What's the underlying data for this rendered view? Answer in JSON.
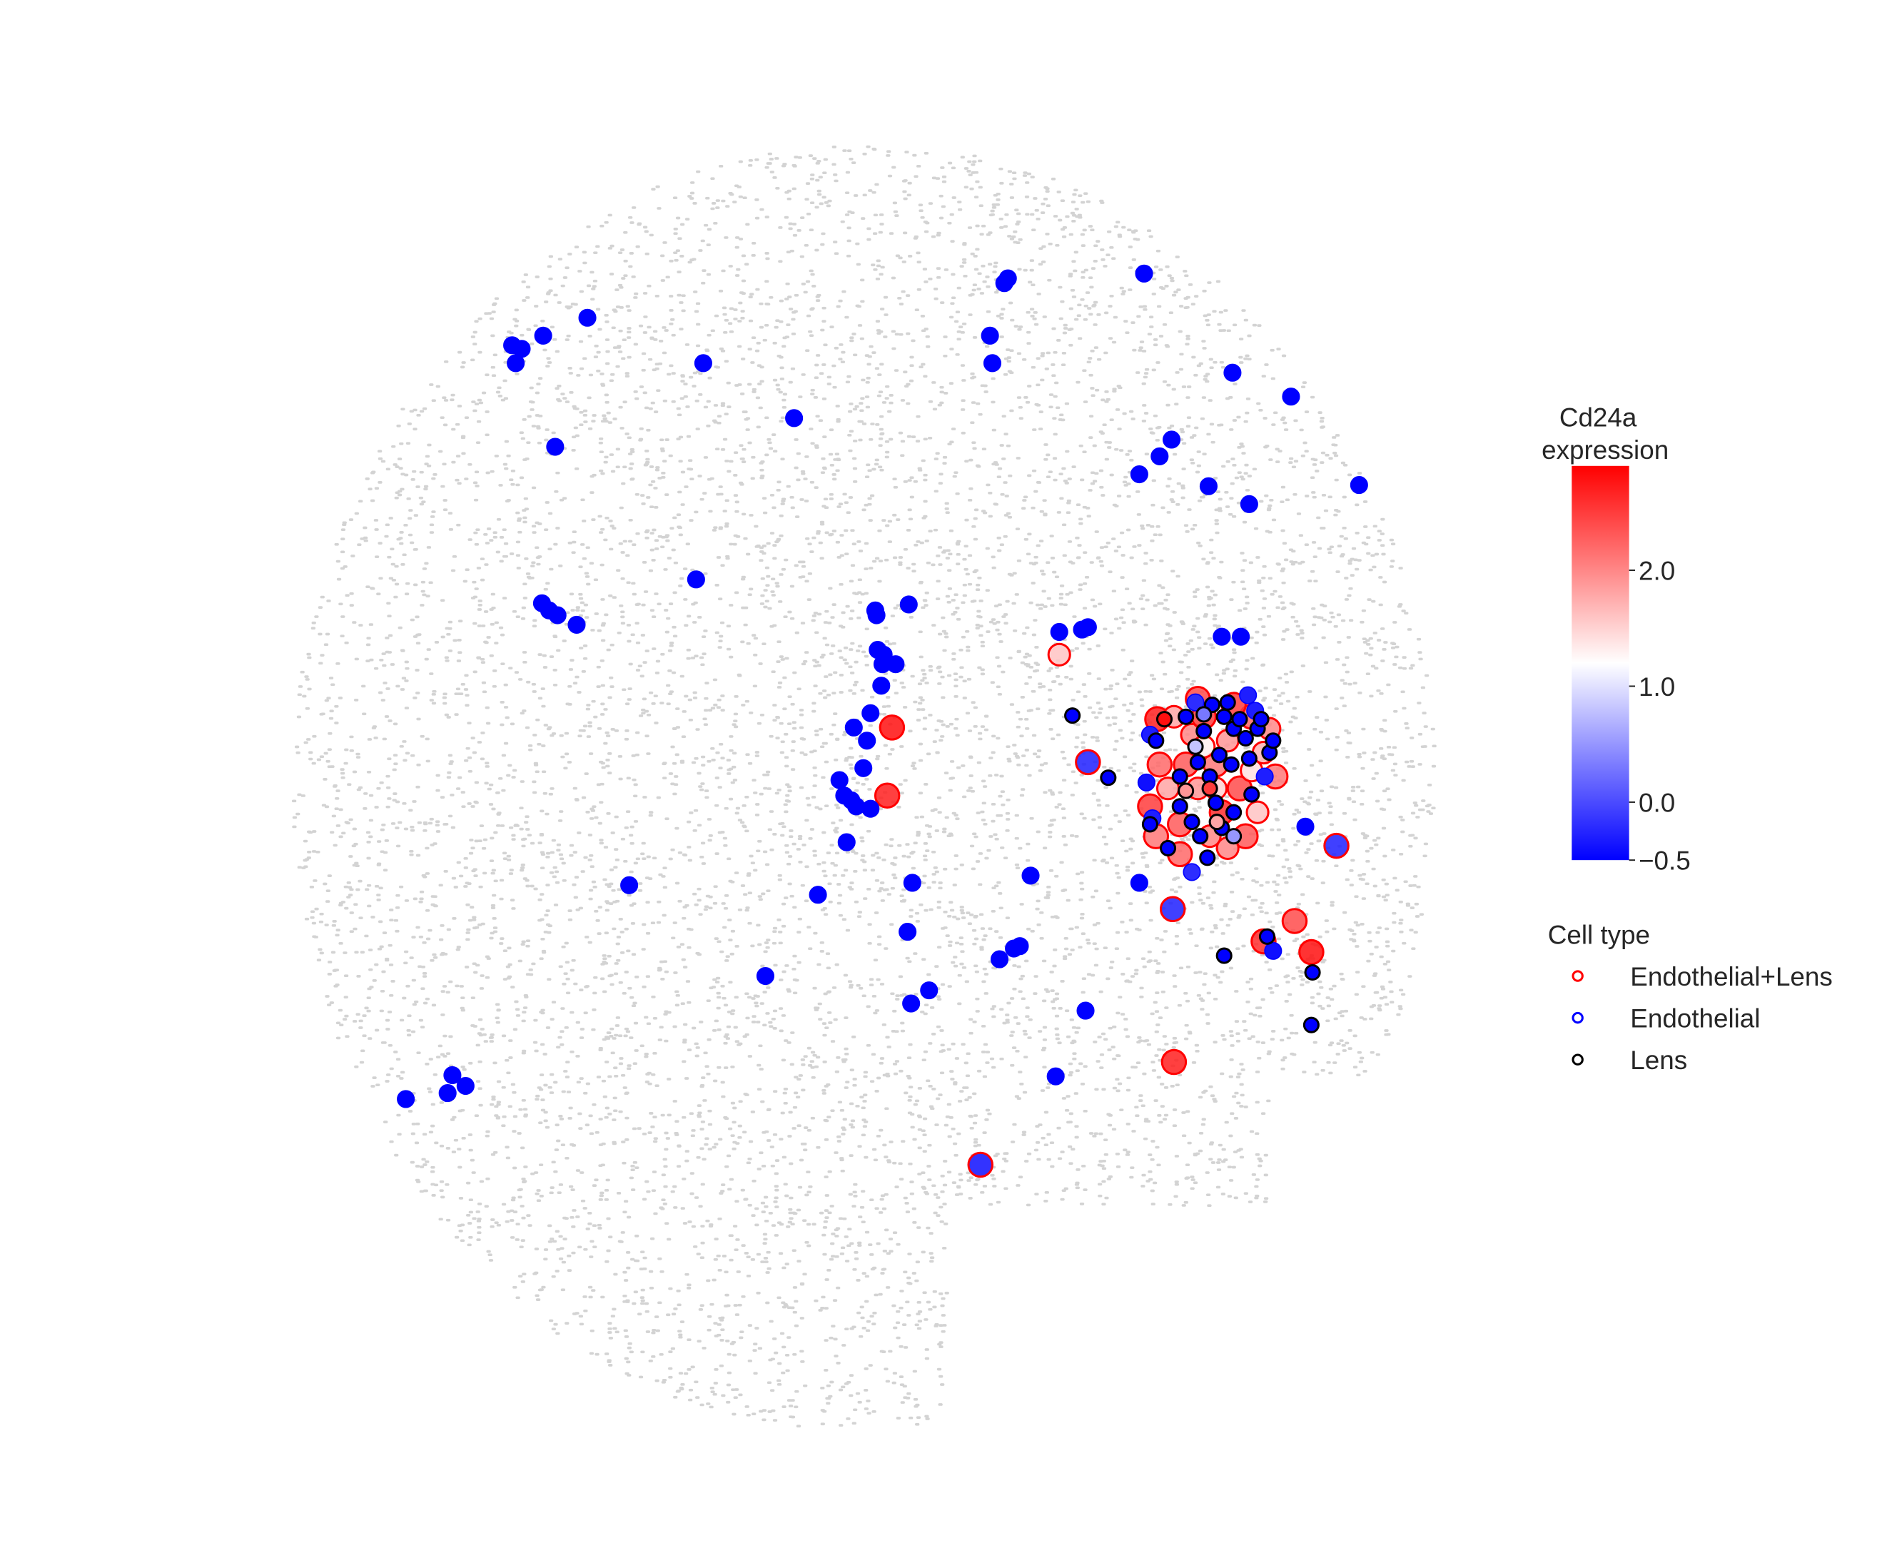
{
  "chart_data": {
    "type": "scatter",
    "title": "",
    "xlabel": "",
    "ylabel": "",
    "xlim": [
      0,
      1570
    ],
    "ylim": [
      0,
      1300
    ],
    "grid": false,
    "axes_visible": false,
    "background_cells": {
      "color": "#d3d3d3",
      "description_shape": "disc",
      "center": [
        720,
        660
      ],
      "radius": 520
    },
    "colorbar": {
      "title_line1": "Cd24a",
      "title_line2": "expression",
      "min": -0.5,
      "max": 2.9,
      "ticks": [
        {
          "value": 2.0,
          "label": "2.0"
        },
        {
          "value": 1.0,
          "label": "1.0"
        },
        {
          "value": 0.0,
          "label": "0.0"
        },
        {
          "value": -0.5,
          "label": "−0.5"
        }
      ],
      "cmap": [
        "#0000ff",
        "#ffffff",
        "#ff0000"
      ],
      "center_value": 1.2
    },
    "legend": {
      "title": "Cell type",
      "placement": "right",
      "entries": [
        {
          "label": "Endothelial+Lens",
          "edge_color": "#ff0000"
        },
        {
          "label": "Endothelial",
          "edge_color": "#0000ff"
        },
        {
          "label": "Lens",
          "edge_color": "#000000"
        }
      ]
    },
    "series": [
      {
        "name": "Endothelial+Lens",
        "edge_color": "#ff0000",
        "points": [
          [
            744,
            609,
            2.8
          ],
          [
            740,
            666,
            2.7
          ],
          [
            980,
            889,
            2.7
          ],
          [
            1081,
            771,
            2.4
          ],
          [
            1095,
            797,
            2.8
          ],
          [
            1055,
            788,
            2.6
          ],
          [
            1116,
            708,
            -0.3
          ],
          [
            884,
            548,
            1.6
          ],
          [
            818,
            975,
            -0.4
          ],
          [
            979,
            761,
            -0.3
          ],
          [
            908,
            638,
            -0.3
          ],
          [
            966,
            602,
            2.7
          ],
          [
            968,
            640,
            2.2
          ],
          [
            975,
            660,
            1.8
          ],
          [
            985,
            690,
            2.3
          ],
          [
            995,
            615,
            2.0
          ],
          [
            1005,
            600,
            2.5
          ],
          [
            1015,
            640,
            2.1
          ],
          [
            1025,
            620,
            1.9
          ],
          [
            1035,
            660,
            2.4
          ],
          [
            1045,
            600,
            2.2
          ],
          [
            1055,
            630,
            1.7
          ],
          [
            1020,
            680,
            2.6
          ],
          [
            1000,
            660,
            1.9
          ],
          [
            990,
            640,
            2.3
          ],
          [
            980,
            600,
            1.8
          ],
          [
            1010,
            700,
            2.0
          ],
          [
            1040,
            700,
            2.3
          ],
          [
            1030,
            590,
            2.5
          ],
          [
            1060,
            610,
            2.0
          ],
          [
            965,
            700,
            2.1
          ],
          [
            1050,
            680,
            1.6
          ],
          [
            1000,
            585,
            2.4
          ],
          [
            985,
            715,
            2.2
          ],
          [
            1025,
            710,
            2.0
          ],
          [
            960,
            675,
            2.5
          ],
          [
            1065,
            650,
            2.1
          ],
          [
            1015,
            660,
            1.5
          ],
          [
            1045,
            645,
            1.4
          ],
          [
            1005,
            625,
            1.3
          ]
        ]
      },
      {
        "name": "Endothelial",
        "edge_color": "#0000ff",
        "points": [
          [
            955,
            229,
            -0.5
          ],
          [
            841,
            233,
            -0.5
          ],
          [
            838,
            237,
            -0.5
          ],
          [
            489,
            266,
            -0.5
          ],
          [
            452,
            281,
            -0.5
          ],
          [
            426,
            289,
            -0.5
          ],
          [
            434,
            292,
            -0.5
          ],
          [
            429,
            304,
            -0.5
          ],
          [
            586,
            304,
            -0.5
          ],
          [
            826,
            281,
            -0.5
          ],
          [
            828,
            304,
            -0.5
          ],
          [
            1029,
            312,
            -0.5
          ],
          [
            1078,
            332,
            -0.5
          ],
          [
            662,
            350,
            -0.5
          ],
          [
            462,
            374,
            -0.5
          ],
          [
            978,
            368,
            -0.5
          ],
          [
            968,
            382,
            -0.5
          ],
          [
            951,
            397,
            -0.5
          ],
          [
            1135,
            406,
            -0.5
          ],
          [
            1009,
            407,
            -0.5
          ],
          [
            1043,
            422,
            -0.5
          ],
          [
            580,
            485,
            -0.5
          ],
          [
            451,
            505,
            -0.5
          ],
          [
            457,
            511,
            -0.5
          ],
          [
            464,
            515,
            -0.5
          ],
          [
            480,
            523,
            -0.5
          ],
          [
            730,
            511,
            -0.5
          ],
          [
            731,
            515,
            -0.5
          ],
          [
            758,
            506,
            -0.5
          ],
          [
            884,
            529,
            -0.5
          ],
          [
            903,
            527,
            -0.5
          ],
          [
            908,
            525,
            -0.5
          ],
          [
            1020,
            533,
            -0.5
          ],
          [
            1036,
            533,
            -0.5
          ],
          [
            732,
            544,
            -0.5
          ],
          [
            737,
            548,
            -0.5
          ],
          [
            736,
            556,
            -0.5
          ],
          [
            747,
            556,
            -0.5
          ],
          [
            735,
            574,
            -0.5
          ],
          [
            726,
            597,
            -0.5
          ],
          [
            712,
            609,
            -0.5
          ],
          [
            723,
            620,
            -0.5
          ],
          [
            720,
            643,
            -0.5
          ],
          [
            700,
            653,
            -0.5
          ],
          [
            704,
            666,
            -0.5
          ],
          [
            710,
            670,
            -0.5
          ],
          [
            714,
            675,
            -0.5
          ],
          [
            726,
            677,
            -0.5
          ],
          [
            706,
            705,
            -0.5
          ],
          [
            1090,
            692,
            -0.5
          ],
          [
            524,
            741,
            -0.5
          ],
          [
            761,
            739,
            -0.5
          ],
          [
            682,
            749,
            -0.5
          ],
          [
            860,
            733,
            -0.5
          ],
          [
            951,
            739,
            -0.5
          ],
          [
            757,
            780,
            -0.5
          ],
          [
            851,
            792,
            -0.5
          ],
          [
            846,
            794,
            -0.5
          ],
          [
            834,
            803,
            -0.5
          ],
          [
            638,
            817,
            -0.5
          ],
          [
            775,
            829,
            -0.5
          ],
          [
            760,
            840,
            -0.5
          ],
          [
            906,
            846,
            -0.5
          ],
          [
            881,
            901,
            -0.5
          ],
          [
            376,
            900,
            -0.5
          ],
          [
            387,
            909,
            -0.5
          ],
          [
            372,
            915,
            -0.5
          ],
          [
            337,
            920,
            -0.5
          ],
          [
            960,
            615,
            -0.3
          ],
          [
            998,
            588,
            -0.2
          ],
          [
            1048,
            595,
            -0.3
          ],
          [
            957,
            655,
            -0.4
          ],
          [
            962,
            685,
            -0.3
          ],
          [
            995,
            730,
            -0.2
          ],
          [
            1056,
            650,
            -0.3
          ],
          [
            1063,
            796,
            -0.4
          ],
          [
            1042,
            582,
            -0.3
          ]
        ]
      },
      {
        "name": "Lens",
        "edge_color": "#000000",
        "points": [
          [
            895,
            599,
            -0.5
          ],
          [
            925,
            651,
            -0.5
          ],
          [
            1022,
            800,
            -0.5
          ],
          [
            1058,
            784,
            -0.5
          ],
          [
            1096,
            814,
            -0.5
          ],
          [
            1095,
            858,
            -0.5
          ],
          [
            1012,
            590,
            -0.5
          ],
          [
            1022,
            600,
            -0.5
          ],
          [
            1030,
            610,
            -0.5
          ],
          [
            1005,
            612,
            -0.5
          ],
          [
            1040,
            618,
            -0.5
          ],
          [
            1018,
            632,
            -0.5
          ],
          [
            1000,
            638,
            -0.5
          ],
          [
            1028,
            640,
            -0.5
          ],
          [
            1043,
            635,
            -0.5
          ],
          [
            1010,
            650,
            -0.5
          ],
          [
            985,
            675,
            -0.5
          ],
          [
            995,
            688,
            -0.5
          ],
          [
            1020,
            693,
            -0.5
          ],
          [
            1030,
            680,
            -0.5
          ],
          [
            1008,
            718,
            -0.5
          ],
          [
            1050,
            610,
            -0.5
          ],
          [
            965,
            620,
            -0.5
          ],
          [
            990,
            600,
            -0.5
          ],
          [
            1060,
            630,
            -0.5
          ],
          [
            975,
            710,
            -0.5
          ],
          [
            1015,
            672,
            -0.5
          ],
          [
            1045,
            665,
            -0.5
          ],
          [
            985,
            650,
            -0.5
          ],
          [
            1035,
            602,
            -0.5
          ],
          [
            1002,
            700,
            -0.5
          ],
          [
            960,
            690,
            -0.5
          ],
          [
            1025,
            588,
            -0.5
          ],
          [
            1053,
            602,
            -0.5
          ],
          [
            1063,
            620,
            -0.5
          ],
          [
            998,
            625,
            0.8
          ],
          [
            1030,
            700,
            0.5
          ],
          [
            1016,
            688,
            1.8
          ],
          [
            972,
            602,
            2.8
          ],
          [
            1010,
            660,
            2.5
          ],
          [
            990,
            662,
            1.9
          ],
          [
            1005,
            598,
            0.3
          ]
        ]
      }
    ]
  }
}
